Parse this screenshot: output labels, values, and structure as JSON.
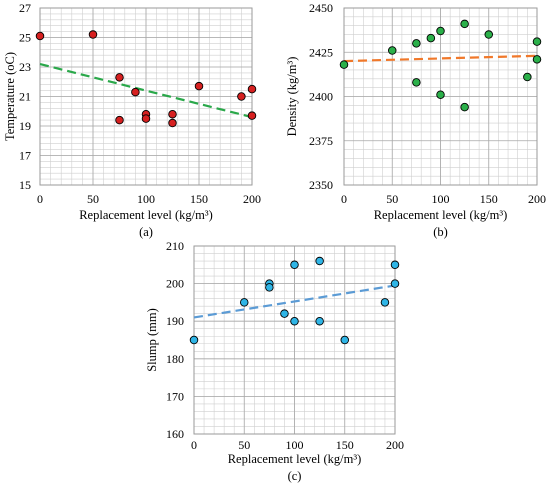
{
  "chart_data": [
    {
      "type": "scatter",
      "caption": "(a)",
      "xlabel": "Replacement level (kg/m³)",
      "ylabel": "Temperature (oC)",
      "xlim": [
        0,
        200
      ],
      "ylim": [
        15,
        27
      ],
      "xticks": [
        0,
        50,
        100,
        150,
        200
      ],
      "yticks": [
        15,
        17,
        19,
        21,
        23,
        25,
        27
      ],
      "grid": true,
      "point_color": "#d62020",
      "trend_color": "#2aa84a",
      "points": [
        [
          0,
          25.1
        ],
        [
          50,
          25.2
        ],
        [
          75,
          22.3
        ],
        [
          75,
          19.4
        ],
        [
          90,
          21.3
        ],
        [
          100,
          19.8
        ],
        [
          100,
          19.5
        ],
        [
          125,
          19.8
        ],
        [
          125,
          19.2
        ],
        [
          150,
          21.7
        ],
        [
          190,
          21.0
        ],
        [
          200,
          21.5
        ],
        [
          200,
          19.7
        ]
      ],
      "trendline": [
        [
          0,
          23.2
        ],
        [
          200,
          19.6
        ]
      ]
    },
    {
      "type": "scatter",
      "caption": "(b)",
      "xlabel": "Replacement level (kg/m³)",
      "ylabel": "Density (kg/m³)",
      "xlim": [
        0,
        200
      ],
      "ylim": [
        2350,
        2450
      ],
      "xticks": [
        0,
        50,
        100,
        150,
        200
      ],
      "yticks": [
        2350,
        2375,
        2400,
        2425,
        2450
      ],
      "grid": true,
      "point_color": "#2bb04a",
      "trend_color": "#f0782a",
      "points": [
        [
          0,
          2418
        ],
        [
          50,
          2426
        ],
        [
          75,
          2430
        ],
        [
          75,
          2408
        ],
        [
          90,
          2433
        ],
        [
          100,
          2437
        ],
        [
          100,
          2401
        ],
        [
          125,
          2441
        ],
        [
          125,
          2394
        ],
        [
          150,
          2435
        ],
        [
          190,
          2411
        ],
        [
          200,
          2431
        ],
        [
          200,
          2421
        ]
      ],
      "trendline": [
        [
          0,
          2420
        ],
        [
          200,
          2423
        ]
      ]
    },
    {
      "type": "scatter",
      "caption": "(c)",
      "xlabel": "Replacement level (kg/m³)",
      "ylabel": "Slump (mm)",
      "xlim": [
        0,
        200
      ],
      "ylim": [
        160,
        210
      ],
      "xticks": [
        0,
        50,
        100,
        150,
        200
      ],
      "yticks": [
        160,
        170,
        180,
        190,
        200,
        210
      ],
      "grid": true,
      "point_color": "#2fb5e6",
      "trend_color": "#5b9bd5",
      "points": [
        [
          0,
          185
        ],
        [
          50,
          195
        ],
        [
          75,
          200
        ],
        [
          75,
          199
        ],
        [
          90,
          192
        ],
        [
          100,
          205
        ],
        [
          100,
          190
        ],
        [
          125,
          206
        ],
        [
          125,
          190
        ],
        [
          150,
          185
        ],
        [
          190,
          195
        ],
        [
          200,
          205
        ],
        [
          200,
          200
        ]
      ],
      "trendline": [
        [
          0,
          191
        ],
        [
          200,
          199.5
        ]
      ]
    }
  ]
}
